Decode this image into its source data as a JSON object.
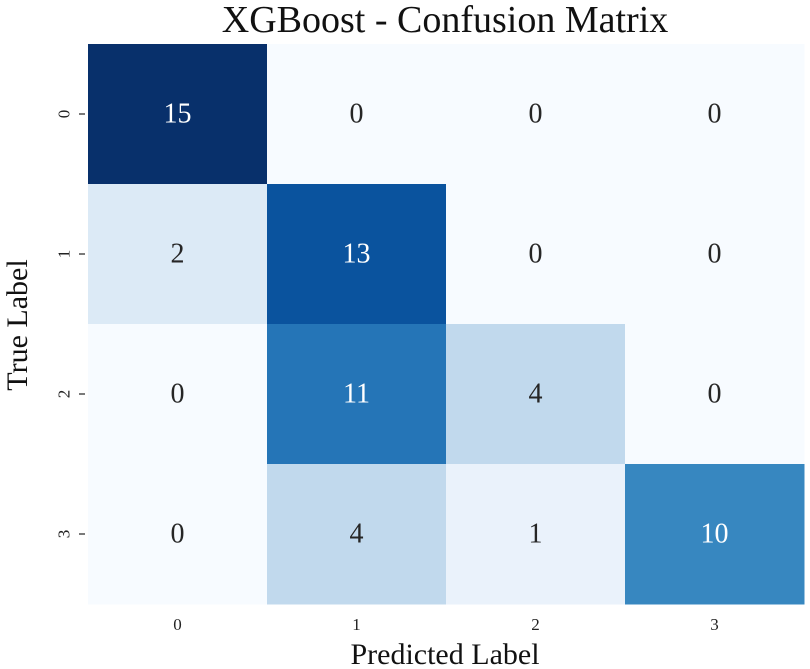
{
  "chart_data": {
    "type": "heatmap",
    "title": "XGBoost - Confusion Matrix",
    "xlabel": "Predicted Label",
    "ylabel": "True Label",
    "x_categories": [
      "0",
      "1",
      "2",
      "3"
    ],
    "y_categories": [
      "0",
      "1",
      "2",
      "3"
    ],
    "values": [
      [
        15,
        0,
        0,
        0
      ],
      [
        2,
        13,
        0,
        0
      ],
      [
        0,
        11,
        4,
        0
      ],
      [
        0,
        4,
        1,
        10
      ]
    ],
    "colormap": "Blues",
    "colorbar": false,
    "annotations": true,
    "grid": false
  }
}
